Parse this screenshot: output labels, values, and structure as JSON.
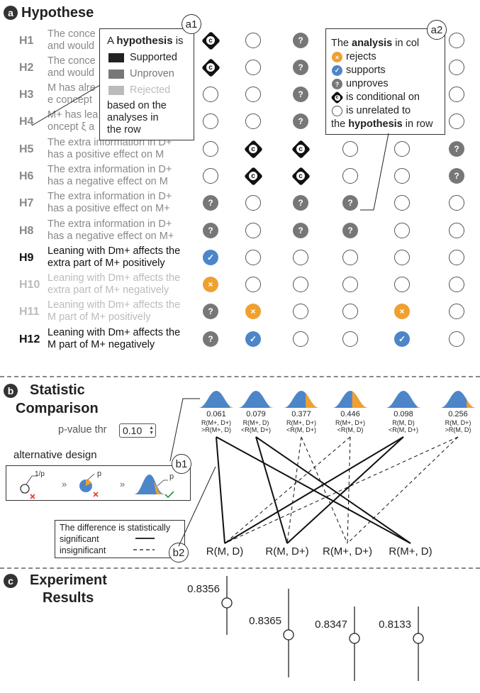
{
  "sections": {
    "a": {
      "badge": "a",
      "title": "Hypothese"
    },
    "b": {
      "badge": "b",
      "title_line1": "Statistic",
      "title_line2": "Comparison"
    },
    "c": {
      "badge": "c",
      "title_line1": "Experiment",
      "title_line2": "Results"
    }
  },
  "hypotheses": [
    {
      "label": "H1",
      "line1": "The conce",
      "line2": "and would",
      "status": "unproven",
      "cells": [
        "conditional",
        "empty",
        "unproven",
        "",
        "",
        "empty"
      ]
    },
    {
      "label": "H2",
      "line1": "The conce",
      "line2": "and would",
      "status": "unproven",
      "cells": [
        "conditional",
        "empty",
        "unproven",
        "",
        "",
        "empty"
      ]
    },
    {
      "label": "H3",
      "line1": "M has alre",
      "line2": "e concept",
      "status": "unproven",
      "cells": [
        "empty",
        "empty",
        "unproven",
        "",
        "",
        "empty"
      ]
    },
    {
      "label": "H4",
      "line1": "M+ has lea",
      "line2": "oncept ξ a",
      "status": "unproven",
      "cells": [
        "empty",
        "empty",
        "unproven",
        "",
        "",
        "empty"
      ]
    },
    {
      "label": "H5",
      "line1": "The extra information in D+",
      "line2": "has a positive effect on M",
      "status": "unproven",
      "cells": [
        "empty",
        "conditional",
        "conditional",
        "empty",
        "empty",
        "unproven"
      ]
    },
    {
      "label": "H6",
      "line1": "The extra information in D+",
      "line2": "has a negative effect on M",
      "status": "unproven",
      "cells": [
        "empty",
        "conditional",
        "conditional",
        "empty",
        "empty",
        "unproven"
      ]
    },
    {
      "label": "H7",
      "line1": "The extra information in D+",
      "line2": "has a positive effect on M+",
      "status": "unproven",
      "cells": [
        "unproven",
        "empty",
        "unproven",
        "unproven",
        "empty",
        "empty"
      ]
    },
    {
      "label": "H8",
      "line1": "The extra information in D+",
      "line2": "has a negative effect on M+",
      "status": "unproven",
      "cells": [
        "unproven",
        "empty",
        "unproven",
        "unproven",
        "empty",
        "empty"
      ]
    },
    {
      "label": "H9",
      "line1": "Leaning with Dm+ affects the",
      "line2": "extra part of M+ positively",
      "status": "supported",
      "cells": [
        "supports",
        "empty",
        "empty",
        "empty",
        "empty",
        "empty"
      ]
    },
    {
      "label": "H10",
      "line1": "Leaning with Dm+ affects the",
      "line2": "extra part of M+ negatively",
      "status": "rejected",
      "cells": [
        "rejects",
        "empty",
        "empty",
        "empty",
        "empty",
        "empty"
      ]
    },
    {
      "label": "H11",
      "line1": "Leaning with Dm+ affects the",
      "line2": "M part of M+ positively",
      "status": "rejected",
      "cells": [
        "unproven",
        "rejects",
        "empty",
        "empty",
        "rejects",
        "empty"
      ]
    },
    {
      "label": "H12",
      "line1": "Leaning with Dm+ affects the",
      "line2": "M part of M+ negatively",
      "status": "supported",
      "cells": [
        "unproven",
        "supports",
        "empty",
        "empty",
        "supports",
        "empty"
      ]
    }
  ],
  "status_colors": {
    "supported": "#111111",
    "unproven": "#888888",
    "rejected": "#bbbbbb"
  },
  "glyphs": {
    "unproven": "?",
    "supports": "✓",
    "rejects": "×",
    "conditional": "c"
  },
  "popup_a1": {
    "bubble": "a1",
    "line1_pre": "A ",
    "line1_bold": "hypothesis",
    "line1_post": " is",
    "legend": [
      {
        "label": "Supported",
        "color": "#222222"
      },
      {
        "label": "Unproven",
        "color": "#777777"
      },
      {
        "label": "Rejected",
        "color": "#bbbbbb"
      }
    ],
    "footer1": "based on the",
    "footer2": "analyses in",
    "footer3": "the row"
  },
  "popup_a2": {
    "bubble": "a2",
    "line1_pre": "The ",
    "line1_bold": "analysis",
    "line1_post": " in col",
    "items": [
      "rejects",
      "supports",
      "unproves",
      "is conditional on",
      "is unrelated to"
    ],
    "last_pre": "the ",
    "last_bold": "hypothesis",
    "last_post": " in row"
  },
  "statistic": {
    "pvalue_label": "p-value thr",
    "pvalue_value": "0.10",
    "alt_design_label": "alternative design",
    "alt_bubble": "b1",
    "alt_one_over_p": "1/p",
    "alt_p1": "p",
    "alt_p2": "p",
    "alt_arrows": "»",
    "legend_bubble": "b2",
    "legend_title1": "The difference is statistically",
    "legend_sig": "significant",
    "legend_insig": "insignificant",
    "dists": [
      {
        "p": "0.061",
        "l1": "R(M+, D+)",
        "l2": ">R(M+, D)"
      },
      {
        "p": "0.079",
        "l1": "R(M+, D)",
        "l2": "<R(M, D+)"
      },
      {
        "p": "0.377",
        "l1": "R(M+, D+)",
        "l2": "<R(M, D+)"
      },
      {
        "p": "0.446",
        "l1": "R(M+, D+)",
        "l2": "<R(M, D)"
      },
      {
        "p": "0.098",
        "l1": "R(M, D)",
        "l2": "<R(M, D+)"
      },
      {
        "p": "0.256",
        "l1": "R(M, D+)",
        "l2": ">R(M, D)"
      }
    ],
    "nodes": [
      "R(M, D)",
      "R(M, D+)",
      "R(M+, D+)",
      "R(M+, D)"
    ],
    "edges": [
      {
        "dist": 0,
        "nodes": [
          0,
          3
        ],
        "sig": true
      },
      {
        "dist": 1,
        "nodes": [
          1,
          3
        ],
        "sig": true
      },
      {
        "dist": 2,
        "nodes": [
          1,
          2
        ],
        "sig": false
      },
      {
        "dist": 3,
        "nodes": [
          2,
          0
        ],
        "sig": false
      },
      {
        "dist": 4,
        "nodes": [
          0,
          1
        ],
        "sig": true
      },
      {
        "dist": 5,
        "nodes": [
          0,
          2
        ],
        "sig": false
      }
    ]
  },
  "results": [
    {
      "value": "0.8356"
    },
    {
      "value": "0.8365"
    },
    {
      "value": "0.8347"
    },
    {
      "value": "0.8133"
    }
  ],
  "colors": {
    "blue": "#4d86c8",
    "orange": "#f0a030",
    "dark": "#111111",
    "grey": "#777777"
  }
}
